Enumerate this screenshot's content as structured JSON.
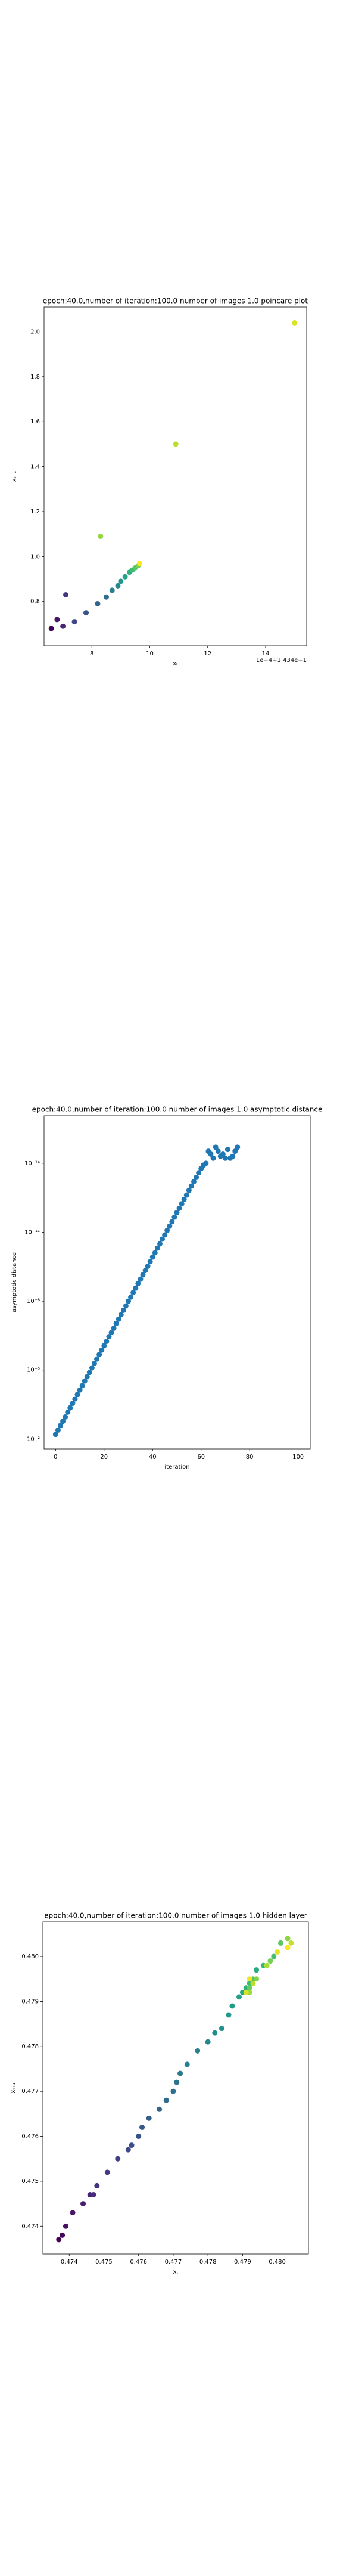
{
  "chart_data": [
    {
      "type": "scatter",
      "title": "epoch:40.0,number of iteration:100.0  number of images 1.0 poincare plot",
      "x_label": "xₜ",
      "y_label": "xₜ₊₁",
      "offset_label": "1e−4+1.434e−1",
      "cmap": "viridis",
      "x": [
        6.6,
        6.8,
        7.0,
        7.1,
        7.4,
        7.8,
        8.2,
        8.5,
        8.7,
        8.9,
        9.0,
        9.15,
        9.3,
        9.4,
        9.5,
        9.6,
        8.3,
        10.9,
        15.0,
        9.65
      ],
      "values": [
        0.68,
        0.72,
        0.69,
        0.83,
        0.71,
        0.75,
        0.79,
        0.82,
        0.85,
        0.87,
        0.89,
        0.91,
        0.93,
        0.94,
        0.95,
        0.96,
        1.09,
        1.5,
        2.04,
        0.97
      ],
      "xlim": [
        6.35,
        15.42
      ],
      "ylim": [
        0.603,
        2.11
      ],
      "xticks": [
        8,
        10,
        12,
        14
      ],
      "yticks": [
        {
          "value": 0.8,
          "label": "0.8"
        },
        {
          "value": 1.0,
          "label": "1.0"
        },
        {
          "value": 1.2,
          "label": "1.2"
        },
        {
          "value": 1.4,
          "label": "1.4"
        },
        {
          "value": 1.6,
          "label": "1.6"
        },
        {
          "value": 1.8,
          "label": "1.8"
        },
        {
          "value": 2.0,
          "label": "2.0"
        }
      ]
    },
    {
      "type": "scatter",
      "title": "epoch:40.0,number of iteration:100.0  number of images 1.0 asymptotic distance",
      "x_label": "iteration",
      "y_label": "asymptotic distance",
      "color": "#1f77b4",
      "yscale": "log",
      "x": [
        0,
        1,
        2,
        3,
        4,
        5,
        6,
        7,
        8,
        9,
        10,
        11,
        12,
        13,
        14,
        15,
        16,
        17,
        18,
        19,
        20,
        21,
        22,
        23,
        24,
        25,
        26,
        27,
        28,
        29,
        30,
        31,
        32,
        33,
        34,
        35,
        36,
        37,
        38,
        39,
        40,
        41,
        42,
        43,
        44,
        45,
        46,
        47,
        48,
        49,
        50,
        51,
        52,
        53,
        54,
        55,
        56,
        57,
        58,
        59,
        60,
        61,
        62,
        63,
        64,
        65,
        66,
        67,
        68,
        69,
        70,
        71,
        72,
        73,
        74,
        75
      ],
      "values": [
        0.0063,
        0.0041,
        0.0026,
        0.0017,
        0.0011,
        0.00068,
        0.00044,
        0.00028,
        0.00018,
        0.000115,
        7.4e-05,
        4.8e-05,
        3e-05,
        1.95e-05,
        1.26e-05,
        8e-06,
        5.1e-06,
        3.3e-06,
        2.1e-06,
        1.35e-06,
        8.7e-07,
        5.6e-07,
        3.5e-07,
        2.3e-07,
        1.5e-07,
        9.3e-08,
        6e-08,
        3.9e-08,
        2.5e-08,
        1.6e-08,
        1e-08,
        6.6e-09,
        4.2e-09,
        2.7e-09,
        1.7e-09,
        1.1e-09,
        7.1e-10,
        4.6e-10,
        3e-10,
        1.9e-10,
        1.2e-10,
        7.8e-11,
        4.9e-11,
        3.2e-11,
        2e-11,
        1.3e-11,
        8.3e-12,
        5.4e-12,
        3.5e-12,
        2.2e-12,
        1.4e-12,
        9.1e-13,
        5.8e-13,
        3.7e-13,
        2.4e-13,
        1.5e-13,
        9.8e-14,
        6.3e-14,
        4.1e-14,
        2.6e-14,
        1.7e-14,
        1.2e-14,
        1e-14,
        3e-15,
        4e-15,
        6e-15,
        2e-15,
        3e-15,
        5e-15,
        4e-15,
        6e-15,
        2.5e-15,
        6e-15,
        5e-15,
        3e-15,
        2e-15
      ],
      "xlim": [
        -4.75,
        105
      ],
      "ylim": [
        0.027,
        8.5e-17
      ],
      "xticks": [
        0,
        20,
        40,
        60,
        80,
        100
      ],
      "yticks": [
        {
          "value": 0.01,
          "label": "10⁻²"
        },
        {
          "value": 1e-05,
          "label": "10⁻⁵"
        },
        {
          "value": 1e-08,
          "label": "10⁻⁸"
        },
        {
          "value": 1e-11,
          "label": "10⁻¹¹"
        },
        {
          "value": 1e-14,
          "label": "10⁻¹⁴"
        }
      ]
    },
    {
      "type": "scatter",
      "title": "epoch:40.0,number of iteration:100.0  number of images 1.0 hidden layer",
      "x_label": "xₜ",
      "y_label": "xₜ₊₁",
      "cmap": "viridis",
      "x": [
        0.4737,
        0.4738,
        0.4739,
        0.4741,
        0.4744,
        0.4746,
        0.4747,
        0.4748,
        0.4751,
        0.4754,
        0.4757,
        0.4758,
        0.476,
        0.4761,
        0.4763,
        0.4766,
        0.4768,
        0.477,
        0.4771,
        0.4772,
        0.4774,
        0.4777,
        0.478,
        0.4782,
        0.4784,
        0.4786,
        0.4787,
        0.4789,
        0.479,
        0.4794,
        0.4791,
        0.4796,
        0.4792,
        0.4799,
        0.4793,
        0.4801,
        0.4792,
        0.4798,
        0.4794,
        0.4803,
        0.4792,
        0.4797,
        0.4793,
        0.4804,
        0.4791,
        0.48,
        0.4792,
        0.4803
      ],
      "values": [
        0.4737,
        0.4738,
        0.474,
        0.4743,
        0.4745,
        0.4747,
        0.4747,
        0.4749,
        0.4752,
        0.4755,
        0.4757,
        0.4758,
        0.476,
        0.4762,
        0.4764,
        0.4766,
        0.4768,
        0.477,
        0.4772,
        0.4774,
        0.4776,
        0.4779,
        0.4781,
        0.4783,
        0.4784,
        0.4787,
        0.4789,
        0.4791,
        0.4792,
        0.4797,
        0.4793,
        0.4798,
        0.4794,
        0.48,
        0.4795,
        0.4803,
        0.4793,
        0.4799,
        0.4795,
        0.4804,
        0.4792,
        0.4798,
        0.4794,
        0.4803,
        0.4792,
        0.4801,
        0.4795,
        0.4802
      ],
      "xlim": [
        0.47324,
        0.4809
      ],
      "ylim": [
        0.47338,
        0.48077
      ],
      "xticks": [
        0.474,
        0.475,
        0.476,
        0.477,
        0.478,
        0.479,
        {
          "value": 0.48,
          "label": "0.480"
        }
      ],
      "yticks": [
        0.474,
        0.475,
        0.476,
        0.477,
        0.478,
        0.479,
        {
          "value": 0.48,
          "label": "0.480"
        }
      ]
    }
  ]
}
